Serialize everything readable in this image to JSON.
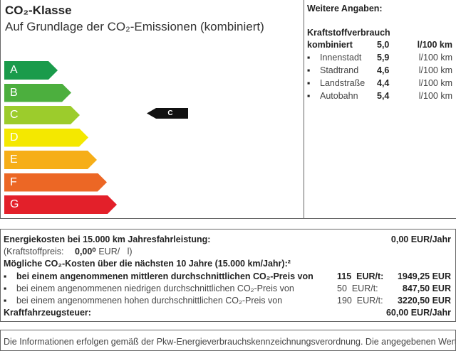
{
  "co2": {
    "title": "CO₂-Klasse",
    "subtitle": "Auf Grundlage der CO₂-Emissionen (kombiniert)",
    "classes": [
      {
        "label": "A",
        "color": "#1a9b4b"
      },
      {
        "label": "B",
        "color": "#4caf3e"
      },
      {
        "label": "C",
        "color": "#9ccc2c"
      },
      {
        "label": "D",
        "color": "#f4e800"
      },
      {
        "label": "E",
        "color": "#f6ae18"
      },
      {
        "label": "F",
        "color": "#ec6725"
      },
      {
        "label": "G",
        "color": "#e3202a"
      }
    ],
    "current_class": "C"
  },
  "weitere": {
    "title": "Weitere Angaben:",
    "heading": "Kraftstoffverbrauch",
    "combined": {
      "label": "kombiniert",
      "value": "5,0",
      "unit": "l/100 km"
    },
    "items": [
      {
        "label": "Innenstadt",
        "value": "5,9",
        "unit": "l/100 km"
      },
      {
        "label": "Stadtrand",
        "value": "4,6",
        "unit": "l/100 km"
      },
      {
        "label": "Landstraße",
        "value": "4,4",
        "unit": "l/100 km"
      },
      {
        "label": "Autobahn",
        "value": "5,4",
        "unit": "l/100 km"
      }
    ]
  },
  "costs": {
    "energy_label": "Energiekosten bei 15.000 km Jahresfahrleistung:",
    "energy_value": "0,00 EUR/Jahr",
    "fuel_price_label": "(Kraftstoffpreis:",
    "fuel_price_value": "0,00⁰",
    "fuel_price_unit": "EUR/   l)",
    "co2_heading": "Mögliche CO₂-Kosten über die nächsten 10 Jahre (15.000 km/Jahr):²",
    "scenarios": [
      {
        "text": "bei einem angenommenen mittleren durchschnittlichen CO₂-Preis von",
        "price": "115  EUR/t:",
        "value": "1949,25 EUR"
      },
      {
        "text": "bei einem angenommenen niedrigen durchschnittlichen CO₂-Preis von",
        "price": "50  EUR/t:",
        "value": "847,50 EUR"
      },
      {
        "text": "bei einem angenommenen hohen durchschnittlichen CO₂-Preis von",
        "price": "190  EUR/t:",
        "value": "3220,50 EUR"
      }
    ],
    "tax_label": "Kraftfahrzeugsteuer:",
    "tax_value": "60,00 EUR/Jahr"
  },
  "note": {
    "text": "Die Informationen erfolgen gemäß der Pkw-Energieverbrauchskennzeichnungsverordnung. Die angegebenen Werte wurden"
  }
}
